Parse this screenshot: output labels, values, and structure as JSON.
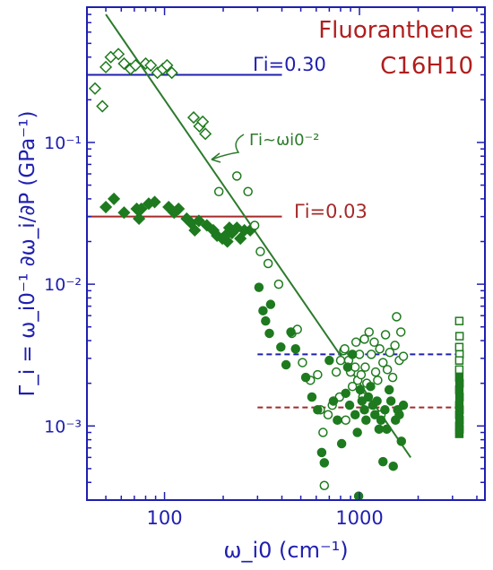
{
  "chart_data": {
    "type": "scatter",
    "title": "Fluoranthene",
    "subtitle": "C16H10",
    "xlabel": "ω_i0 (cm⁻¹)",
    "ylabel": "Γ_i = ω_i0⁻¹ ∂ω_i/∂P (GPa⁻¹)",
    "x_scale": "log",
    "y_scale": "log",
    "xlim": [
      40,
      4400
    ],
    "ylim": [
      0.0003,
      0.9
    ],
    "x_ticks": [
      100,
      1000
    ],
    "x_tick_labels": [
      "100",
      "1000"
    ],
    "y_ticks": [
      0.001,
      0.01,
      0.1
    ],
    "y_tick_labels": [
      "10⁻³",
      "10⁻²",
      "10⁻¹"
    ],
    "grid": false,
    "colors": {
      "axis": "#1f1fb0",
      "series": "#1e7a1e",
      "title": "#b01e1e",
      "blue_line": "#1f1fb0",
      "red_line": "#a52a2a",
      "fit_line": "#2d7a2d"
    },
    "annotations": {
      "gamma_high": "Γi=0.30",
      "gamma_low": "Γi=0.03",
      "power_law": "Γi~ωi0⁻²"
    },
    "reference_lines": [
      {
        "name": "Γi=0.30",
        "y": 0.3,
        "x_range": [
          40,
          400
        ],
        "style": "solid",
        "color": "#1f1fb0"
      },
      {
        "name": "Γi=0.03",
        "y": 0.03,
        "x_range": [
          40,
          400
        ],
        "style": "solid",
        "color": "#a52a2a"
      },
      {
        "y": 0.0032,
        "x_range": [
          300,
          3300
        ],
        "style": "dashed",
        "color": "#1f1fb0"
      },
      {
        "y": 0.00135,
        "x_range": [
          300,
          3300
        ],
        "style": "dashed",
        "color": "#a52a2a"
      }
    ],
    "fit_line": {
      "points": [
        [
          50,
          0.8
        ],
        [
          1830,
          0.0006
        ]
      ],
      "style": "solid",
      "color": "#2d7a2d"
    },
    "series": [
      {
        "marker": "diamond-open",
        "points": [
          [
            44,
            0.24
          ],
          [
            48,
            0.18
          ],
          [
            50,
            0.34
          ],
          [
            53,
            0.4
          ],
          [
            58,
            0.42
          ],
          [
            62,
            0.36
          ],
          [
            67,
            0.33
          ],
          [
            71,
            0.35
          ],
          [
            80,
            0.36
          ],
          [
            85,
            0.35
          ],
          [
            92,
            0.31
          ],
          [
            98,
            0.33
          ],
          [
            103,
            0.35
          ],
          [
            109,
            0.31
          ],
          [
            141,
            0.15
          ],
          [
            151,
            0.13
          ],
          [
            157,
            0.14
          ],
          [
            162,
            0.115
          ]
        ]
      },
      {
        "marker": "diamond-filled",
        "points": [
          [
            50,
            0.035
          ],
          [
            55,
            0.04
          ],
          [
            62,
            0.032
          ],
          [
            72,
            0.034
          ],
          [
            74,
            0.029
          ],
          [
            76,
            0.034
          ],
          [
            83,
            0.037
          ],
          [
            89,
            0.038
          ],
          [
            105,
            0.035
          ],
          [
            112,
            0.032
          ],
          [
            118,
            0.034
          ],
          [
            130,
            0.029
          ],
          [
            137,
            0.027
          ],
          [
            143,
            0.024
          ],
          [
            150,
            0.028
          ],
          [
            165,
            0.026
          ],
          [
            178,
            0.024
          ],
          [
            186,
            0.022
          ],
          [
            198,
            0.021
          ],
          [
            205,
            0.022
          ],
          [
            210,
            0.02
          ],
          [
            215,
            0.025
          ],
          [
            222,
            0.023
          ],
          [
            235,
            0.025
          ],
          [
            245,
            0.021
          ],
          [
            257,
            0.024
          ],
          [
            275,
            0.024
          ]
        ]
      },
      {
        "marker": "circle-open",
        "points": [
          [
            190,
            0.045
          ],
          [
            235,
            0.058
          ],
          [
            268,
            0.045
          ],
          [
            290,
            0.026
          ],
          [
            310,
            0.017
          ],
          [
            340,
            0.014
          ],
          [
            385,
            0.01
          ],
          [
            450,
            0.0045
          ],
          [
            480,
            0.0048
          ],
          [
            510,
            0.0028
          ],
          [
            560,
            0.0021
          ],
          [
            610,
            0.0023
          ],
          [
            630,
            0.0013
          ],
          [
            650,
            0.0009
          ],
          [
            660,
            0.00038
          ],
          [
            690,
            0.0012
          ],
          [
            725,
            0.0014
          ],
          [
            760,
            0.0024
          ],
          [
            790,
            0.0016
          ],
          [
            800,
            0.0029
          ],
          [
            830,
            0.0034
          ],
          [
            840,
            0.0035
          ],
          [
            850,
            0.0011
          ],
          [
            880,
            0.0029
          ],
          [
            900,
            0.0024
          ],
          [
            920,
            0.0019
          ],
          [
            950,
            0.0026
          ],
          [
            960,
            0.0039
          ],
          [
            980,
            0.0021
          ],
          [
            1000,
            0.0032
          ],
          [
            1020,
            0.0023
          ],
          [
            1040,
            0.0016
          ],
          [
            1060,
            0.0041
          ],
          [
            1070,
            0.0026
          ],
          [
            1090,
            0.002
          ],
          [
            1120,
            0.0046
          ],
          [
            1150,
            0.0032
          ],
          [
            1190,
            0.0039
          ],
          [
            1210,
            0.0024
          ],
          [
            1240,
            0.0021
          ],
          [
            1270,
            0.0035
          ],
          [
            1290,
            0.0012
          ],
          [
            1320,
            0.0028
          ],
          [
            1360,
            0.0044
          ],
          [
            1390,
            0.0025
          ],
          [
            1430,
            0.0033
          ],
          [
            1480,
            0.0022
          ],
          [
            1520,
            0.0037
          ],
          [
            1550,
            0.0059
          ],
          [
            1600,
            0.0029
          ],
          [
            1630,
            0.0046
          ],
          [
            1680,
            0.0031
          ]
        ]
      },
      {
        "marker": "circle-filled",
        "points": [
          [
            305,
            0.0095
          ],
          [
            320,
            0.0065
          ],
          [
            330,
            0.0055
          ],
          [
            345,
            0.0045
          ],
          [
            350,
            0.0072
          ],
          [
            395,
            0.0036
          ],
          [
            420,
            0.0027
          ],
          [
            445,
            0.0046
          ],
          [
            470,
            0.0035
          ],
          [
            530,
            0.0022
          ],
          [
            570,
            0.0016
          ],
          [
            610,
            0.0013
          ],
          [
            640,
            0.00065
          ],
          [
            660,
            0.00055
          ],
          [
            700,
            0.0029
          ],
          [
            735,
            0.0015
          ],
          [
            770,
            0.0011
          ],
          [
            810,
            0.00075
          ],
          [
            850,
            0.0017
          ],
          [
            870,
            0.0026
          ],
          [
            890,
            0.0014
          ],
          [
            920,
            0.0032
          ],
          [
            950,
            0.0012
          ],
          [
            975,
            0.0009
          ],
          [
            990,
            0.00032
          ],
          [
            1010,
            0.0018
          ],
          [
            1030,
            0.0015
          ],
          [
            1060,
            0.0013
          ],
          [
            1080,
            0.0011
          ],
          [
            1110,
            0.0016
          ],
          [
            1140,
            0.0019
          ],
          [
            1170,
            0.0014
          ],
          [
            1200,
            0.0012
          ],
          [
            1230,
            0.0015
          ],
          [
            1260,
            0.00095
          ],
          [
            1290,
            0.0011
          ],
          [
            1320,
            0.00056
          ],
          [
            1350,
            0.0013
          ],
          [
            1380,
            0.00095
          ],
          [
            1420,
            0.0018
          ],
          [
            1450,
            0.0015
          ],
          [
            1490,
            0.00052
          ],
          [
            1530,
            0.0011
          ],
          [
            1570,
            0.0013
          ],
          [
            1600,
            0.0012
          ],
          [
            1640,
            0.00078
          ],
          [
            1680,
            0.0014
          ]
        ]
      },
      {
        "marker": "square-open",
        "points": [
          [
            3250,
            0.0055
          ],
          [
            3260,
            0.0043
          ],
          [
            3250,
            0.0036
          ],
          [
            3260,
            0.0032
          ],
          [
            3250,
            0.0029
          ],
          [
            3250,
            0.0025
          ]
        ]
      },
      {
        "marker": "square-filled",
        "points": [
          [
            3250,
            0.0022
          ],
          [
            3260,
            0.002
          ],
          [
            3250,
            0.0018
          ],
          [
            3260,
            0.0016
          ],
          [
            3250,
            0.0014
          ],
          [
            3260,
            0.0013
          ],
          [
            3250,
            0.0012
          ],
          [
            3260,
            0.0011
          ],
          [
            3250,
            0.001
          ],
          [
            3260,
            0.00095
          ],
          [
            3250,
            0.00088
          ]
        ]
      }
    ]
  }
}
